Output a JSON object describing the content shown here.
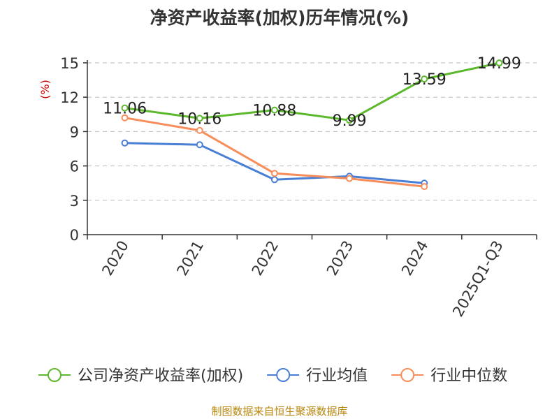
{
  "source_note": "制图数据来自恒生聚源数据库",
  "chart_data": {
    "type": "line",
    "title": "净资产收益率(加权)历年情况(%)",
    "ylabel": "(%)",
    "xlabel": "",
    "categories": [
      "2020",
      "2021",
      "2022",
      "2023",
      "2024",
      "2025Q1-Q3"
    ],
    "ylim": [
      0,
      15
    ],
    "yticks": [
      0,
      3,
      6,
      9,
      12,
      15
    ],
    "grid": true,
    "legend_position": "bottom",
    "series": [
      {
        "name": "公司净资产收益率(加权)",
        "color": "#5cb82c",
        "values": [
          11.06,
          10.16,
          10.88,
          9.99,
          13.59,
          14.99
        ],
        "labels": [
          "11.06",
          "10.16",
          "10.88",
          "9.99",
          "13.59",
          "14.99"
        ]
      },
      {
        "name": "行业均值",
        "color": "#4a7fd6",
        "values": [
          8.0,
          7.85,
          4.8,
          5.1,
          4.5,
          null
        ]
      },
      {
        "name": "行业中位数",
        "color": "#f78d5a",
        "values": [
          10.2,
          9.1,
          5.35,
          4.9,
          4.2,
          null
        ]
      }
    ]
  }
}
